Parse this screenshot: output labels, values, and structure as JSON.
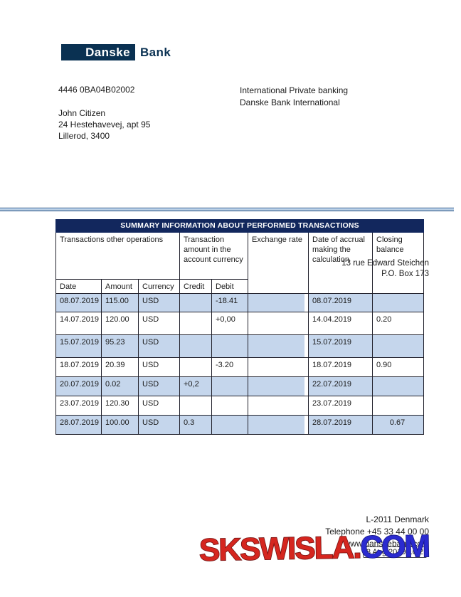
{
  "logo": {
    "box_text": "Danske",
    "outside_text": "Bank"
  },
  "header": {
    "account_number": "4446 0BA04B02002",
    "customer_lines": [
      "John Citizen",
      "24 Hestehavevej, apt 95",
      "Lillerod, 3400"
    ],
    "bank_lines": [
      "International Private banking",
      "Danske Bank International"
    ]
  },
  "table": {
    "title": "SUMMARY INFORMATION ABOUT PERFORMED TRANSACTIONS",
    "group1": "Transactions other operations",
    "group2": "Transaction amount in the account currency",
    "col_exchange": "Exchange rate",
    "col_accrual": "Date of accrual making the calculation",
    "col_closing": "Closing balance",
    "sub_headers": [
      "Date",
      "Amount",
      "Currency",
      "Credit",
      "Debit"
    ],
    "rows": [
      {
        "date": "08.07.2019",
        "amount": "115.00",
        "currency": "USD",
        "credit": "",
        "debit": "-18.41",
        "exchange": "",
        "accrual": "08.07.2019",
        "closing": ""
      },
      {
        "date": "14.07.2019",
        "amount": "120.00",
        "currency": "USD",
        "credit": "",
        "debit": "+0,00",
        "exchange": "",
        "accrual": "14.04.2019",
        "closing": "0.20"
      },
      {
        "date": "15.07.2019",
        "amount": "95.23",
        "currency": "USD",
        "credit": "",
        "debit": "",
        "exchange": "",
        "accrual": "15.07.2019",
        "closing": ""
      },
      {
        "date": "18.07.2019",
        "amount": "20.39",
        "currency": "USD",
        "credit": "",
        "debit": "-3.20",
        "exchange": "",
        "accrual": "18.07.2019",
        "closing": "0.90"
      },
      {
        "date": "20.07.2019",
        "amount": "0.02",
        "currency": "USD",
        "credit": "+0,2",
        "debit": "",
        "exchange": "",
        "accrual": "22.07.2019",
        "closing": ""
      },
      {
        "date": "23.07.2019",
        "amount": "120.30",
        "currency": "USD",
        "credit": "",
        "debit": "",
        "exchange": "",
        "accrual": "23.07.2019",
        "closing": ""
      },
      {
        "date": "28.07.2019",
        "amount": "100.00",
        "currency": "USD",
        "credit": "0.3",
        "debit": "",
        "exchange": "",
        "accrual": "28.07.2019",
        "closing": "0.67"
      }
    ]
  },
  "overlay_address": {
    "line1": "13 rue Edward Steichen",
    "line2": "P.O. Box 173"
  },
  "footer": {
    "lines": [
      "L-2011 Denmark",
      "Telephone +45 33 44 00 00",
      "www.danskebank.com"
    ],
    "stamp": "8 Aug 2019 10:2"
  },
  "watermark": {
    "red_part": "SKSWISLA.",
    "blue_part": "COM"
  },
  "colors": {
    "logo_navy": "#0a3152",
    "table_title_navy": "#12275d",
    "row_shade_blue": "#c5d6ec",
    "watermark_red": "#d5261f",
    "watermark_blue": "#2b2bd0"
  }
}
